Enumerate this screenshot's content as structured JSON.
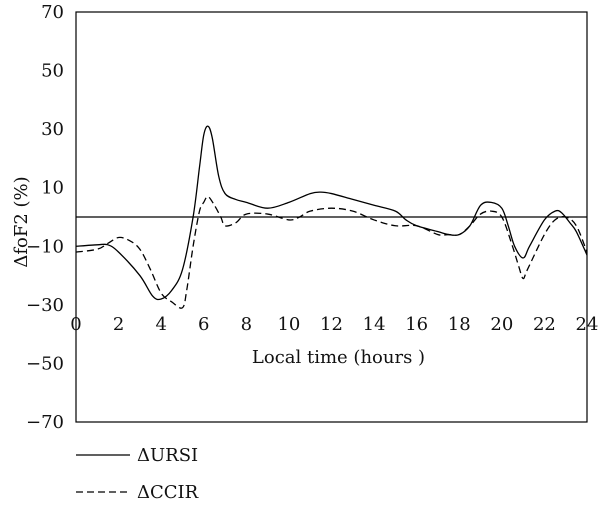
{
  "chart_data": {
    "type": "line",
    "title": "",
    "xlabel": "Local time (hours )",
    "ylabel": "ΔfoF2 (%)",
    "xlim": [
      0,
      24
    ],
    "ylim": [
      -70,
      70
    ],
    "x_ticks": [
      "0",
      "2",
      "4",
      "6",
      "8",
      "10",
      "12",
      "14",
      "16",
      "18",
      "20",
      "22",
      "24"
    ],
    "y_ticks": [
      "70",
      "50",
      "30",
      "10",
      "-10",
      "-30",
      "-50",
      "-70"
    ],
    "reference_line_y": 0,
    "grid": false,
    "legend_position": "below",
    "series": [
      {
        "name": "ΔURSI",
        "style": "solid",
        "x": [
          0,
          1,
          1.5,
          2,
          3,
          3.6,
          4,
          4.5,
          5,
          5.5,
          5.8,
          6,
          6.2,
          6.4,
          6.7,
          7,
          7.5,
          8,
          9,
          10,
          11,
          11.5,
          12,
          13,
          14,
          15,
          15.5,
          16,
          17,
          17.5,
          18,
          18.5,
          19,
          19.5,
          20,
          20.3,
          20.6,
          21,
          21.3,
          22,
          22.5,
          22.8,
          23.2,
          23.5,
          24
        ],
        "y": [
          -10,
          -9.5,
          -9.5,
          -12,
          -20,
          -27,
          -28,
          -25,
          -18,
          0,
          17,
          28,
          31,
          27,
          14,
          8,
          6,
          5,
          3,
          5,
          8,
          8.5,
          8,
          6,
          4,
          2,
          -1,
          -3,
          -5,
          -6,
          -6,
          -3,
          4,
          5,
          3,
          -3,
          -10,
          -14,
          -10,
          -1,
          2,
          1.5,
          -2,
          -5,
          -13
        ]
      },
      {
        "name": "ΔCCIR",
        "style": "dashed",
        "x": [
          0,
          1,
          1.5,
          2,
          2.5,
          3,
          3.5,
          4,
          4.5,
          5,
          5.2,
          5.5,
          5.8,
          6,
          6.2,
          6.5,
          6.8,
          7,
          7.5,
          8,
          9,
          10,
          10.5,
          11,
          12,
          13,
          14,
          15,
          16,
          17,
          17.5,
          18,
          18.5,
          19,
          19.5,
          20,
          20.5,
          20.8,
          21,
          21.2,
          22,
          22.5,
          23,
          23.5,
          24
        ],
        "y": [
          -12,
          -11,
          -9,
          -7,
          -8,
          -11,
          -18,
          -26,
          -29,
          -31,
          -25,
          -10,
          2,
          5,
          7,
          4,
          0,
          -3,
          -2,
          1,
          1,
          -1,
          0,
          2,
          3,
          2,
          -1,
          -3,
          -3,
          -6,
          -6,
          -6,
          -3,
          1,
          2,
          0,
          -10,
          -17,
          -21,
          -18,
          -6,
          -1,
          0,
          -3,
          -12
        ]
      }
    ]
  }
}
